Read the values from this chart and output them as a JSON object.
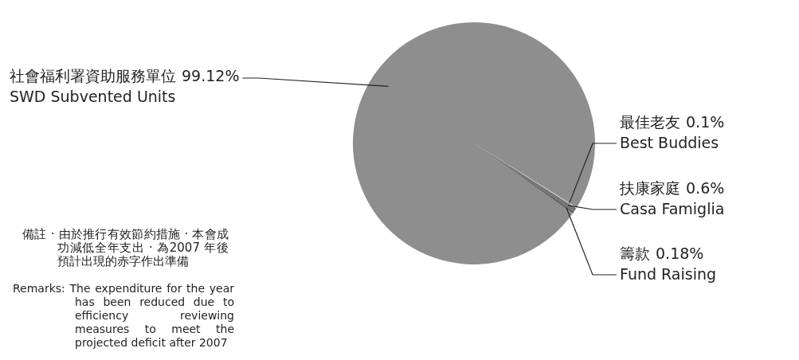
{
  "chart_data": {
    "type": "pie",
    "categories": [
      "社會福利署資助服務單位\nSWD Subvented Units",
      "最佳老友\nBest Buddies",
      "扶康家庭\nCasa Famiglia",
      "籌款\nFund Raising"
    ],
    "values": [
      99.12,
      0.1,
      0.6,
      0.18
    ],
    "colors": [
      "#8e8e8e",
      "#d6d6d6",
      "#767676",
      "#4a4a4a"
    ],
    "value_labels": [
      "99.12%",
      "0.1%",
      "0.6%",
      "0.18%"
    ],
    "annotations": [
      "備註 · 由於推行有效節約措施 · 本會成功減低全年支出 · 為2007 年後預計出現的赤字作出準備",
      "Remarks: The expenditure for the year has been reduced due to efficiency reviewing measures to meet the projected deficit after 2007"
    ]
  }
}
